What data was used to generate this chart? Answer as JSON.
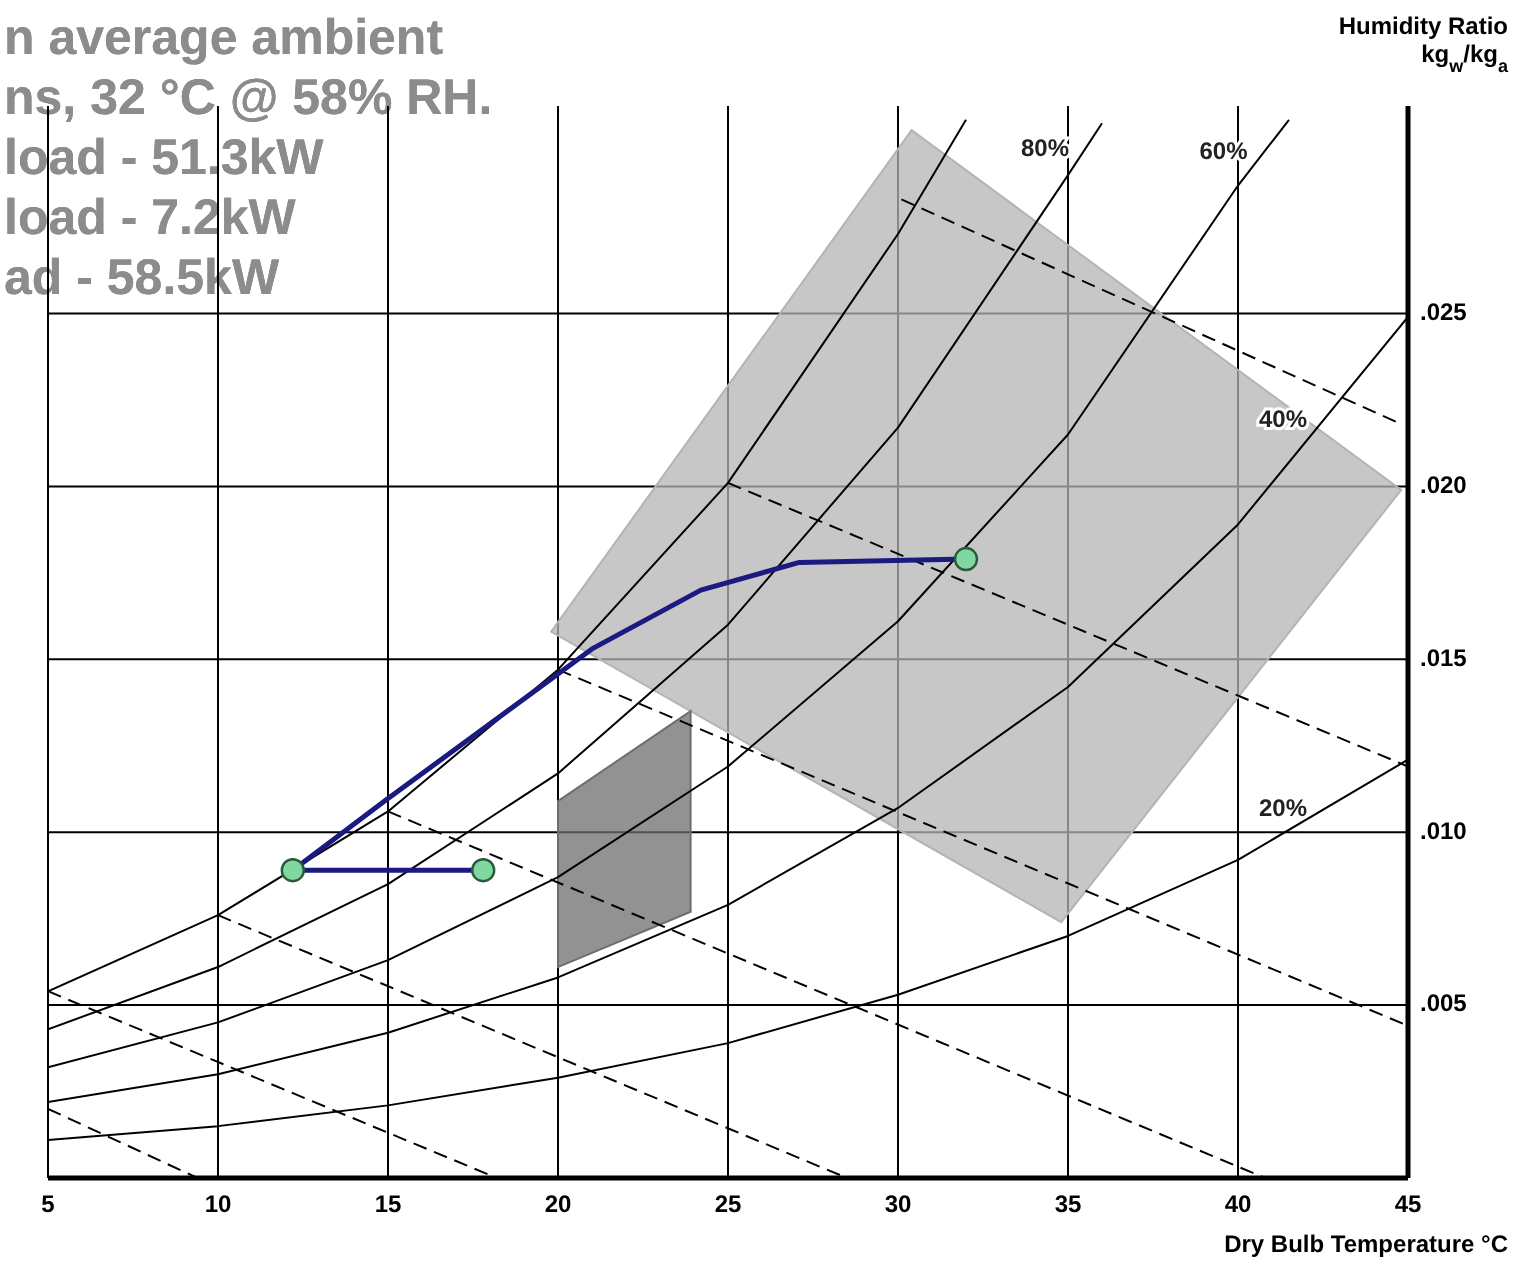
{
  "chart_data": {
    "type": "line",
    "xlabel": "Dry Bulb Temperature °C",
    "ylabel": "Humidity Ratio kg$_{w}$/kg$_{a}$",
    "annotations": [
      "n average ambient",
      "ns, 32 °C @ 58% RH.",
      "load - 51.3kW",
      "load - 7.2kW",
      "ad - 58.5kW"
    ],
    "xlim": [
      5,
      45
    ],
    "ylim": [
      0,
      0.031
    ],
    "xticks": [
      5,
      10,
      15,
      20,
      25,
      30,
      35,
      40,
      45
    ],
    "yticks": [
      {
        "value": 0.005,
        "label": ".005"
      },
      {
        "value": 0.01,
        "label": ".010"
      },
      {
        "value": 0.015,
        "label": ".015"
      },
      {
        "value": 0.02,
        "label": ".020"
      },
      {
        "value": 0.025,
        "label": ".025"
      }
    ],
    "grid": true,
    "legend": false,
    "series": [
      {
        "type": "area",
        "color": "#b4b4b4",
        "x": [
          19.8,
          30.4,
          44.8,
          34.8,
          19.8
        ],
        "values": [
          0.0158,
          0.0303,
          0.0199,
          0.0074,
          0.0158
        ]
      },
      {
        "type": "area",
        "color": "#6e6e6e",
        "x": [
          20,
          23.9,
          23.9,
          20,
          20
        ],
        "values": [
          0.0109,
          0.0135,
          0.0077,
          0.0061,
          0.0109
        ]
      },
      {
        "type": "line",
        "color": "#000000",
        "line_style": "solid",
        "x": [
          5,
          10,
          15,
          20,
          25,
          30,
          32
        ],
        "values": [
          0.0054,
          0.0076,
          0.0106,
          0.0147,
          0.0201,
          0.0273,
          0.0306
        ]
      },
      {
        "name": "80%",
        "color": "#000000",
        "line_style": "solid",
        "x": [
          5,
          10,
          15,
          20,
          25,
          30,
          35,
          36
        ],
        "values": [
          0.0043,
          0.0061,
          0.0085,
          0.0117,
          0.016,
          0.0217,
          0.029,
          0.0305
        ]
      },
      {
        "name": "60%",
        "color": "#000000",
        "line_style": "solid",
        "x": [
          5,
          10,
          15,
          20,
          25,
          30,
          35,
          40,
          41.5
        ],
        "values": [
          0.0032,
          0.0045,
          0.0063,
          0.0087,
          0.0119,
          0.0161,
          0.0215,
          0.0287,
          0.0306
        ]
      },
      {
        "name": "40%",
        "color": "#000000",
        "line_style": "solid",
        "x": [
          5,
          10,
          15,
          20,
          25,
          30,
          35,
          40,
          45
        ],
        "values": [
          0.0022,
          0.003,
          0.0042,
          0.0058,
          0.0079,
          0.0107,
          0.0142,
          0.0189,
          0.0249
        ]
      },
      {
        "name": "20%",
        "color": "#000000",
        "line_style": "solid",
        "x": [
          5,
          10,
          15,
          20,
          25,
          30,
          35,
          40,
          45
        ],
        "values": [
          0.0011,
          0.0015,
          0.0021,
          0.0029,
          0.0039,
          0.0053,
          0.007,
          0.0092,
          0.0121
        ]
      },
      {
        "type": "line",
        "color": "#000000",
        "line_style": "dashed",
        "x": [
          5,
          9.4
        ],
        "values": [
          0.002,
          0
        ]
      },
      {
        "type": "line",
        "color": "#000000",
        "line_style": "dashed",
        "x": [
          5,
          18.2
        ],
        "values": [
          0.0054,
          0
        ]
      },
      {
        "type": "line",
        "color": "#000000",
        "line_style": "dashed",
        "x": [
          10,
          28.5
        ],
        "values": [
          0.0076,
          0
        ]
      },
      {
        "type": "line",
        "color": "#000000",
        "line_style": "dashed",
        "x": [
          15,
          40.8
        ],
        "values": [
          0.0106,
          0
        ]
      },
      {
        "type": "line",
        "color": "#000000",
        "line_style": "dashed",
        "x": [
          20,
          45
        ],
        "values": [
          0.0147,
          0.0044
        ]
      },
      {
        "type": "line",
        "color": "#000000",
        "line_style": "dashed",
        "x": [
          25,
          45
        ],
        "values": [
          0.0201,
          0.0119
        ]
      },
      {
        "type": "line",
        "color": "#000000",
        "line_style": "dashed",
        "x": [
          30.1,
          44.8
        ],
        "values": [
          0.0283,
          0.0218
        ]
      },
      {
        "type": "line",
        "color": "#1a1a80",
        "line_style": "solid",
        "x": [
          17.8,
          12.2,
          14.9,
          21,
          24.2,
          27.1,
          32.0
        ],
        "values": [
          0.0089,
          0.0089,
          0.0109,
          0.0153,
          0.017,
          0.0178,
          0.0179
        ]
      },
      {
        "type": "scatter",
        "color": "#80d8a0",
        "marker": "circle",
        "x": [
          12.2,
          17.8,
          32.0
        ],
        "values": [
          0.0089,
          0.0089,
          0.0179
        ]
      }
    ]
  }
}
